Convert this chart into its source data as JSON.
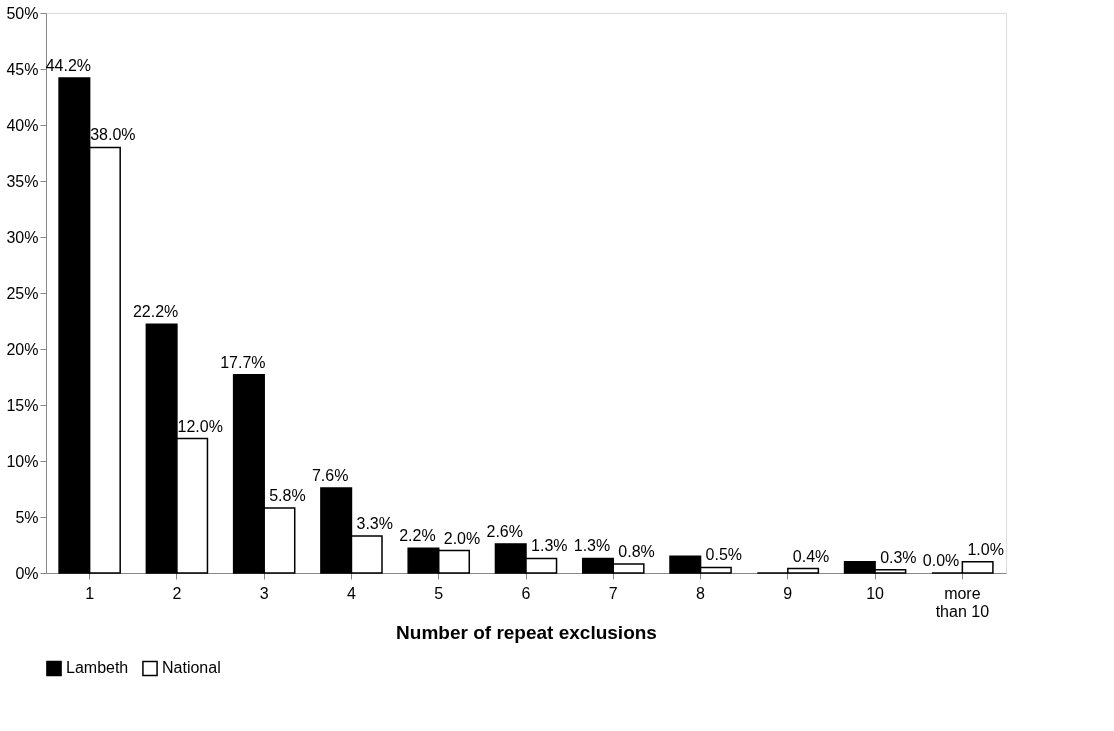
{
  "chart_data": {
    "type": "bar",
    "xlabel": "Number of repeat exclusions",
    "categories": [
      "1",
      "2",
      "3",
      "4",
      "5",
      "6",
      "7",
      "8",
      "9",
      "10",
      "more than 10"
    ],
    "series": [
      {
        "name": "Lambeth",
        "color": "#000000",
        "values": [
          44.2,
          22.2,
          17.7,
          7.6,
          2.2,
          2.6,
          1.3,
          1.5,
          0,
          1.0,
          0.0
        ],
        "value_labels": [
          "44.2%",
          "22.2%",
          "17.7%",
          "7.6%",
          "2.2%",
          "2.6%",
          "1.3%",
          null,
          null,
          null,
          "0.0%"
        ]
      },
      {
        "name": "National",
        "color": "#ffffff",
        "values": [
          38.0,
          12.0,
          5.8,
          3.3,
          2.0,
          1.3,
          0.8,
          0.5,
          0.4,
          0.3,
          1.0
        ],
        "value_labels": [
          "38.0%",
          "12.0%",
          "5.8%",
          "3.3%",
          "2.0%",
          "1.3%",
          "0.8%",
          "0.5%",
          "0.4%",
          "0.3%",
          "1.0%"
        ]
      }
    ],
    "ylim": [
      0,
      50
    ],
    "yticks": [
      {
        "value": 0,
        "label": "0%"
      },
      {
        "value": 5,
        "label": "5%"
      },
      {
        "value": 10,
        "label": "10%"
      },
      {
        "value": 15,
        "label": "15%"
      },
      {
        "value": 20,
        "label": "20%"
      },
      {
        "value": 25,
        "label": "25%"
      },
      {
        "value": 30,
        "label": "30%"
      },
      {
        "value": 35,
        "label": "35%"
      },
      {
        "value": 40,
        "label": "40%"
      },
      {
        "value": 45,
        "label": "45%"
      },
      {
        "value": 50,
        "label": "50%"
      }
    ],
    "grid": false,
    "legend": "bottom"
  }
}
